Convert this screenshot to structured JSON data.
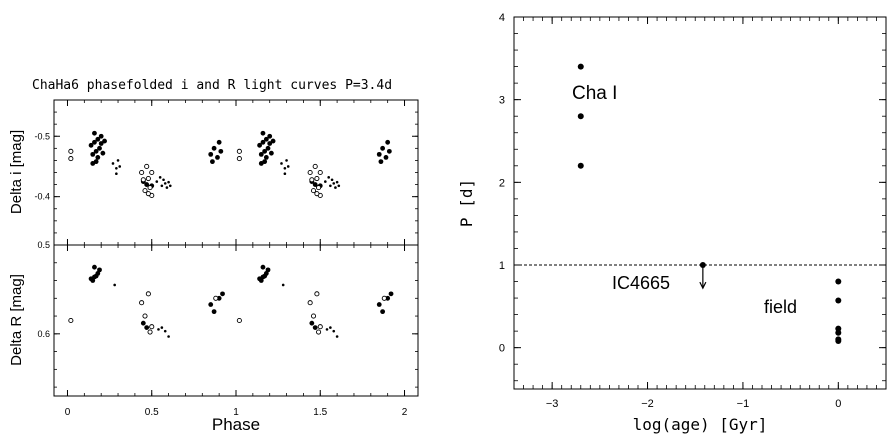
{
  "chart_data": [
    {
      "type": "scatter",
      "title": "ChaHa6 phasefolded i and R light curves  P=3.4d",
      "xlabel": "Phase",
      "x_ticks": [
        "0",
        "0.5",
        "1",
        "1.5",
        "2"
      ],
      "xlim": [
        -0.08,
        2.08
      ],
      "panels": [
        {
          "ylabel": "Delta i [mag]",
          "ylim": [
            -0.56,
            -0.32
          ],
          "y_ticks": [
            {
              "value": -0.5,
              "label": "-0.5"
            },
            {
              "value": -0.4,
              "label": "-0.4"
            }
          ],
          "series": [
            {
              "marker": "filled",
              "points": [
                [
                  0.14,
                  -0.485
                ],
                [
                  0.15,
                  -0.47
                ],
                [
                  0.16,
                  -0.49
                ],
                [
                  0.16,
                  -0.505
                ],
                [
                  0.17,
                  -0.475
                ],
                [
                  0.18,
                  -0.495
                ],
                [
                  0.18,
                  -0.465
                ],
                [
                  0.19,
                  -0.48
                ],
                [
                  0.2,
                  -0.5
                ],
                [
                  0.2,
                  -0.488
                ],
                [
                  0.21,
                  -0.472
                ],
                [
                  0.22,
                  -0.492
                ],
                [
                  0.15,
                  -0.455
                ],
                [
                  0.17,
                  -0.458
                ],
                [
                  0.45,
                  -0.425
                ],
                [
                  0.47,
                  -0.42
                ],
                [
                  0.5,
                  -0.418
                ],
                [
                  0.85,
                  -0.47
                ],
                [
                  0.87,
                  -0.48
                ],
                [
                  0.89,
                  -0.465
                ],
                [
                  0.91,
                  -0.475
                ],
                [
                  0.86,
                  -0.458
                ],
                [
                  0.9,
                  -0.49
                ],
                [
                  1.14,
                  -0.485
                ],
                [
                  1.15,
                  -0.47
                ],
                [
                  1.16,
                  -0.49
                ],
                [
                  1.16,
                  -0.505
                ],
                [
                  1.17,
                  -0.475
                ],
                [
                  1.18,
                  -0.495
                ],
                [
                  1.18,
                  -0.465
                ],
                [
                  1.19,
                  -0.48
                ],
                [
                  1.2,
                  -0.5
                ],
                [
                  1.2,
                  -0.488
                ],
                [
                  1.21,
                  -0.472
                ],
                [
                  1.22,
                  -0.492
                ],
                [
                  1.15,
                  -0.455
                ],
                [
                  1.17,
                  -0.458
                ],
                [
                  1.45,
                  -0.425
                ],
                [
                  1.47,
                  -0.42
                ],
                [
                  1.5,
                  -0.418
                ],
                [
                  1.85,
                  -0.47
                ],
                [
                  1.87,
                  -0.48
                ],
                [
                  1.89,
                  -0.465
                ],
                [
                  1.91,
                  -0.475
                ],
                [
                  1.86,
                  -0.458
                ],
                [
                  1.9,
                  -0.49
                ]
              ]
            },
            {
              "marker": "open",
              "points": [
                [
                  0.02,
                  -0.475
                ],
                [
                  0.02,
                  -0.463
                ],
                [
                  0.44,
                  -0.44
                ],
                [
                  0.45,
                  -0.428
                ],
                [
                  0.46,
                  -0.41
                ],
                [
                  0.47,
                  -0.45
                ],
                [
                  0.48,
                  -0.43
                ],
                [
                  0.49,
                  -0.415
                ],
                [
                  0.5,
                  -0.44
                ],
                [
                  0.5,
                  -0.402
                ],
                [
                  0.48,
                  -0.405
                ],
                [
                  1.02,
                  -0.475
                ],
                [
                  1.02,
                  -0.463
                ],
                [
                  1.44,
                  -0.44
                ],
                [
                  1.45,
                  -0.428
                ],
                [
                  1.46,
                  -0.41
                ],
                [
                  1.47,
                  -0.45
                ],
                [
                  1.48,
                  -0.43
                ],
                [
                  1.49,
                  -0.415
                ],
                [
                  1.5,
                  -0.44
                ],
                [
                  1.5,
                  -0.402
                ],
                [
                  1.48,
                  -0.405
                ]
              ]
            },
            {
              "marker": "small",
              "points": [
                [
                  0.27,
                  -0.455
                ],
                [
                  0.29,
                  -0.447
                ],
                [
                  0.3,
                  -0.46
                ],
                [
                  0.31,
                  -0.45
                ],
                [
                  0.29,
                  -0.438
                ],
                [
                  0.53,
                  -0.425
                ],
                [
                  0.55,
                  -0.432
                ],
                [
                  0.56,
                  -0.418
                ],
                [
                  0.57,
                  -0.428
                ],
                [
                  0.58,
                  -0.422
                ],
                [
                  0.59,
                  -0.415
                ],
                [
                  0.6,
                  -0.424
                ],
                [
                  0.61,
                  -0.418
                ],
                [
                  1.27,
                  -0.455
                ],
                [
                  1.29,
                  -0.447
                ],
                [
                  1.3,
                  -0.46
                ],
                [
                  1.31,
                  -0.45
                ],
                [
                  1.29,
                  -0.438
                ],
                [
                  1.53,
                  -0.425
                ],
                [
                  1.55,
                  -0.432
                ],
                [
                  1.56,
                  -0.418
                ],
                [
                  1.57,
                  -0.428
                ],
                [
                  1.58,
                  -0.422
                ],
                [
                  1.59,
                  -0.415
                ],
                [
                  1.6,
                  -0.424
                ],
                [
                  1.61,
                  -0.418
                ]
              ]
            }
          ]
        },
        {
          "ylabel": "Delta R [mag]",
          "ylim": [
            0.5,
            0.67
          ],
          "y_ticks": [
            {
              "value": 0.5,
              "label": "0.5"
            },
            {
              "value": 0.6,
              "label": "0.6"
            }
          ],
          "series": [
            {
              "marker": "filled",
              "points": [
                [
                  0.14,
                  0.538
                ],
                [
                  0.15,
                  0.54
                ],
                [
                  0.16,
                  0.536
                ],
                [
                  0.17,
                  0.535
                ],
                [
                  0.18,
                  0.532
                ],
                [
                  0.16,
                  0.525
                ],
                [
                  0.19,
                  0.528
                ],
                [
                  0.45,
                  0.588
                ],
                [
                  0.47,
                  0.593
                ],
                [
                  0.85,
                  0.567
                ],
                [
                  0.87,
                  0.575
                ],
                [
                  0.9,
                  0.56
                ],
                [
                  0.92,
                  0.555
                ],
                [
                  1.14,
                  0.538
                ],
                [
                  1.15,
                  0.54
                ],
                [
                  1.16,
                  0.536
                ],
                [
                  1.17,
                  0.535
                ],
                [
                  1.18,
                  0.532
                ],
                [
                  1.16,
                  0.525
                ],
                [
                  1.19,
                  0.528
                ],
                [
                  1.45,
                  0.588
                ],
                [
                  1.47,
                  0.593
                ],
                [
                  1.85,
                  0.567
                ],
                [
                  1.87,
                  0.575
                ],
                [
                  1.9,
                  0.56
                ],
                [
                  1.92,
                  0.555
                ]
              ]
            },
            {
              "marker": "open",
              "points": [
                [
                  0.02,
                  0.585
                ],
                [
                  0.44,
                  0.565
                ],
                [
                  0.48,
                  0.555
                ],
                [
                  0.46,
                  0.58
                ],
                [
                  0.49,
                  0.598
                ],
                [
                  0.5,
                  0.592
                ],
                [
                  0.88,
                  0.56
                ],
                [
                  1.02,
                  0.585
                ],
                [
                  1.44,
                  0.565
                ],
                [
                  1.48,
                  0.555
                ],
                [
                  1.46,
                  0.58
                ],
                [
                  1.49,
                  0.598
                ],
                [
                  1.5,
                  0.592
                ],
                [
                  1.88,
                  0.56
                ]
              ]
            },
            {
              "marker": "small",
              "points": [
                [
                  0.28,
                  0.545
                ],
                [
                  0.54,
                  0.595
                ],
                [
                  0.56,
                  0.593
                ],
                [
                  0.58,
                  0.597
                ],
                [
                  0.6,
                  0.603
                ],
                [
                  1.28,
                  0.545
                ],
                [
                  1.54,
                  0.595
                ],
                [
                  1.56,
                  0.593
                ],
                [
                  1.58,
                  0.597
                ],
                [
                  1.6,
                  0.603
                ]
              ]
            }
          ]
        }
      ]
    },
    {
      "type": "scatter",
      "xlabel": "log(age) [Gyr]",
      "ylabel": "P [d]",
      "xlim": [
        -3.4,
        0.5
      ],
      "ylim": [
        -0.5,
        4
      ],
      "x_ticks": [
        {
          "value": -3,
          "label": "−3"
        },
        {
          "value": -2,
          "label": "−2"
        },
        {
          "value": -1,
          "label": "−1"
        },
        {
          "value": 0,
          "label": "0"
        }
      ],
      "y_ticks": [
        {
          "value": 0,
          "label": "0"
        },
        {
          "value": 1,
          "label": "1"
        },
        {
          "value": 2,
          "label": "2"
        },
        {
          "value": 3,
          "label": "3"
        },
        {
          "value": 4,
          "label": "4"
        }
      ],
      "hline": 1,
      "series": [
        {
          "name": "Cha I",
          "points": [
            [
              -2.7,
              3.4
            ],
            [
              -2.7,
              2.8
            ],
            [
              -2.7,
              2.2
            ]
          ]
        },
        {
          "name": "IC4665",
          "upper_limit": true,
          "points": [
            [
              -1.42,
              1.0
            ]
          ]
        },
        {
          "name": "field",
          "points": [
            [
              0,
              0.8
            ],
            [
              0,
              0.57
            ],
            [
              0,
              0.23
            ],
            [
              0,
              0.18
            ],
            [
              0,
              0.1
            ],
            [
              0,
              0.08
            ]
          ]
        }
      ]
    }
  ]
}
